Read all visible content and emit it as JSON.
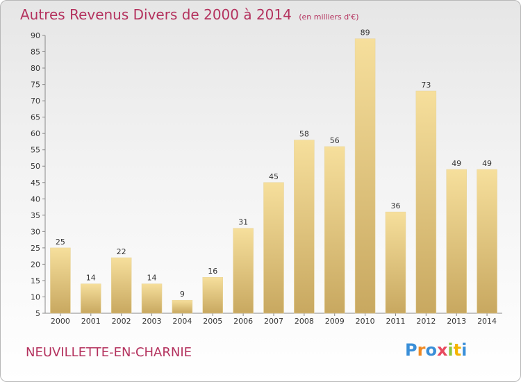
{
  "header": {
    "title": "Autres Revenus Divers de 2000 à 2014",
    "unit_note": "(en milliers d'€)"
  },
  "footer": {
    "place": "NEUVILLETTE-EN-CHARNIE",
    "logo_letters": [
      "P",
      "r",
      "o",
      "x",
      "i",
      "t",
      "i"
    ],
    "logo_text": "Proxiti"
  },
  "colors": {
    "title": "#b4325e",
    "bar_light": "#f6df9c",
    "bar_dark": "#c8a860"
  },
  "chart_data": {
    "type": "bar",
    "title": "Autres Revenus Divers de 2000 à 2014",
    "categories": [
      "2000",
      "2001",
      "2002",
      "2003",
      "2004",
      "2005",
      "2006",
      "2007",
      "2008",
      "2009",
      "2010",
      "2011",
      "2012",
      "2013",
      "2014"
    ],
    "values": [
      25,
      14,
      22,
      14,
      9,
      16,
      31,
      45,
      58,
      56,
      89,
      36,
      73,
      49,
      49
    ],
    "ylim": [
      5,
      90
    ],
    "yticks": [
      5,
      10,
      15,
      20,
      25,
      30,
      35,
      40,
      45,
      50,
      55,
      60,
      65,
      70,
      75,
      80,
      85,
      90
    ],
    "grid": false,
    "legend": "none"
  }
}
